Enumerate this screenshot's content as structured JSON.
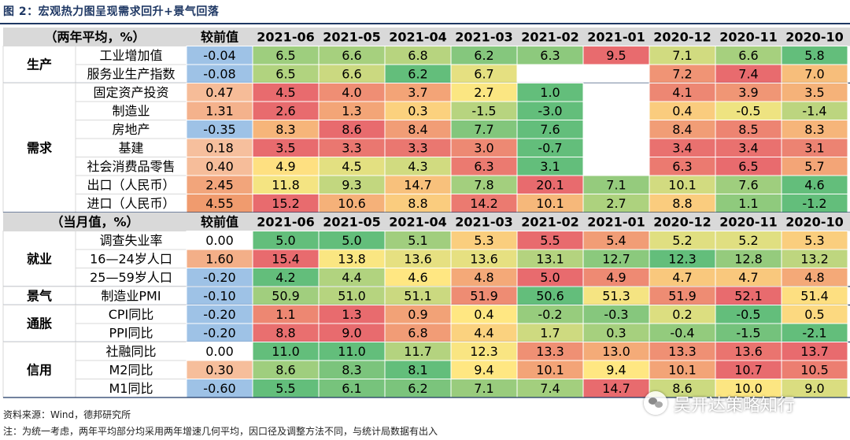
{
  "figure": {
    "title": "图 2：宏观热力图呈现需求回升+景气回落",
    "source": "资料来源：Wind，德邦研究所",
    "note": "注：为统一考虑，两年平均部分均采用两年增速几何平均，因口径及调整方法不同，与统计局数据有出入",
    "watermark": "吴开达策略知行"
  },
  "colors": {
    "header_bg": "#d9d9d9",
    "label_bg": "#ffffff",
    "grid": "#ffffff",
    "rule": "#1f3864"
  },
  "chart_data": {
    "type": "heatmap",
    "columns": [
      "较前值",
      "2021-06",
      "2021-05",
      "2021-04",
      "2021-03",
      "2021-02",
      "2021-01",
      "2020-12",
      "2020-11",
      "2020-10"
    ],
    "sections": [
      {
        "header": "（两年平均，%）",
        "groups": [
          {
            "name": "生产",
            "rows": [
              {
                "label": "工业增加值",
                "change": "-0.04",
                "values": [
                  "6.5",
                  "6.6",
                  "6.8",
                  "6.2",
                  "6.3",
                  "9.5",
                  "7.1",
                  "6.6",
                  "5.8"
                ]
              },
              {
                "label": "服务业生产指数",
                "change": "-0.08",
                "values": [
                  "6.5",
                  "6.6",
                  "6.2",
                  "6.7",
                  "",
                  "",
                  "7.2",
                  "7.4",
                  "7.0"
                ]
              }
            ]
          },
          {
            "name": "需求",
            "rows": [
              {
                "label": "固定资产投资",
                "change": "0.47",
                "values": [
                  "4.5",
                  "4.0",
                  "3.7",
                  "2.7",
                  "1.0",
                  "",
                  "4.1",
                  "3.9",
                  "3.5"
                ]
              },
              {
                "label": "制造业",
                "change": "1.31",
                "values": [
                  "2.6",
                  "1.3",
                  "0.3",
                  "-1.5",
                  "-3.0",
                  "",
                  "0.4",
                  "-0.5",
                  "-1.4"
                ]
              },
              {
                "label": "房地产",
                "change": "-0.35",
                "values": [
                  "8.3",
                  "8.6",
                  "8.4",
                  "7.7",
                  "7.6",
                  "",
                  "8.4",
                  "8.5",
                  "8.3"
                ]
              },
              {
                "label": "基建",
                "change": "0.18",
                "values": [
                  "3.5",
                  "3.3",
                  "3.3",
                  "3.0",
                  "-0.7",
                  "",
                  "3.4",
                  "3.4",
                  "3.1"
                ]
              },
              {
                "label": "社会消费品零售",
                "change": "0.40",
                "values": [
                  "4.9",
                  "4.5",
                  "4.3",
                  "6.3",
                  "3.1",
                  "",
                  "6.3",
                  "6.5",
                  "5.7"
                ]
              },
              {
                "label": "出口（人民币）",
                "change": "2.45",
                "values": [
                  "11.8",
                  "9.3",
                  "14.7",
                  "7.8",
                  "20.1",
                  "7.1",
                  "10.1",
                  "7.6",
                  "4.6"
                ]
              },
              {
                "label": "进口（人民币）",
                "change": "4.55",
                "values": [
                  "15.2",
                  "10.6",
                  "8.8",
                  "14.2",
                  "10.1",
                  "2.7",
                  "8.8",
                  "1.1",
                  "-1.2"
                ]
              }
            ]
          }
        ]
      },
      {
        "header": "（当月值，%）",
        "groups": [
          {
            "name": "就业",
            "rows": [
              {
                "label": "调查失业率",
                "change": "0.00",
                "values": [
                  "5.0",
                  "5.0",
                  "5.1",
                  "5.3",
                  "5.5",
                  "5.4",
                  "5.2",
                  "5.2",
                  "5.3"
                ]
              },
              {
                "label": "16—24岁人口",
                "change": "1.60",
                "values": [
                  "15.4",
                  "13.8",
                  "13.6",
                  "13.6",
                  "13.1",
                  "12.7",
                  "12.3",
                  "12.8",
                  "13.2"
                ]
              },
              {
                "label": "25—59岁人口",
                "change": "-0.20",
                "values": [
                  "4.2",
                  "4.4",
                  "4.6",
                  "4.8",
                  "5.0",
                  "4.9",
                  "4.7",
                  "4.7",
                  "4.8"
                ]
              }
            ]
          },
          {
            "name": "景气",
            "rows": [
              {
                "label": "制造业PMI",
                "change": "-0.10",
                "values": [
                  "50.9",
                  "51.0",
                  "51.1",
                  "51.9",
                  "50.6",
                  "51.3",
                  "51.9",
                  "52.1",
                  "51.4"
                ]
              }
            ]
          },
          {
            "name": "通胀",
            "rows": [
              {
                "label": "CPI同比",
                "change": "-0.20",
                "values": [
                  "1.1",
                  "1.3",
                  "0.9",
                  "0.4",
                  "-0.2",
                  "-0.3",
                  "0.2",
                  "-0.5",
                  "0.5"
                ]
              },
              {
                "label": "PPI同比",
                "change": "-0.20",
                "values": [
                  "8.8",
                  "9.0",
                  "6.8",
                  "4.4",
                  "1.7",
                  "0.3",
                  "-0.4",
                  "-1.5",
                  "-2.1"
                ]
              }
            ]
          },
          {
            "name": "信用",
            "rows": [
              {
                "label": "社融同比",
                "change": "0.00",
                "values": [
                  "11.0",
                  "11.0",
                  "11.7",
                  "12.3",
                  "13.3",
                  "13.0",
                  "13.3",
                  "13.6",
                  "13.7"
                ]
              },
              {
                "label": "M2同比",
                "change": "0.30",
                "values": [
                  "8.6",
                  "8.3",
                  "8.1",
                  "9.4",
                  "10.1",
                  "9.4",
                  "10.1",
                  "10.7",
                  "10.5"
                ]
              },
              {
                "label": "M1同比",
                "change": "-0.60",
                "values": [
                  "5.5",
                  "6.1",
                  "6.2",
                  "7.1",
                  "7.4",
                  "14.7",
                  "8.6",
                  "10.0",
                  "9.0"
                ]
              }
            ]
          }
        ]
      }
    ]
  }
}
